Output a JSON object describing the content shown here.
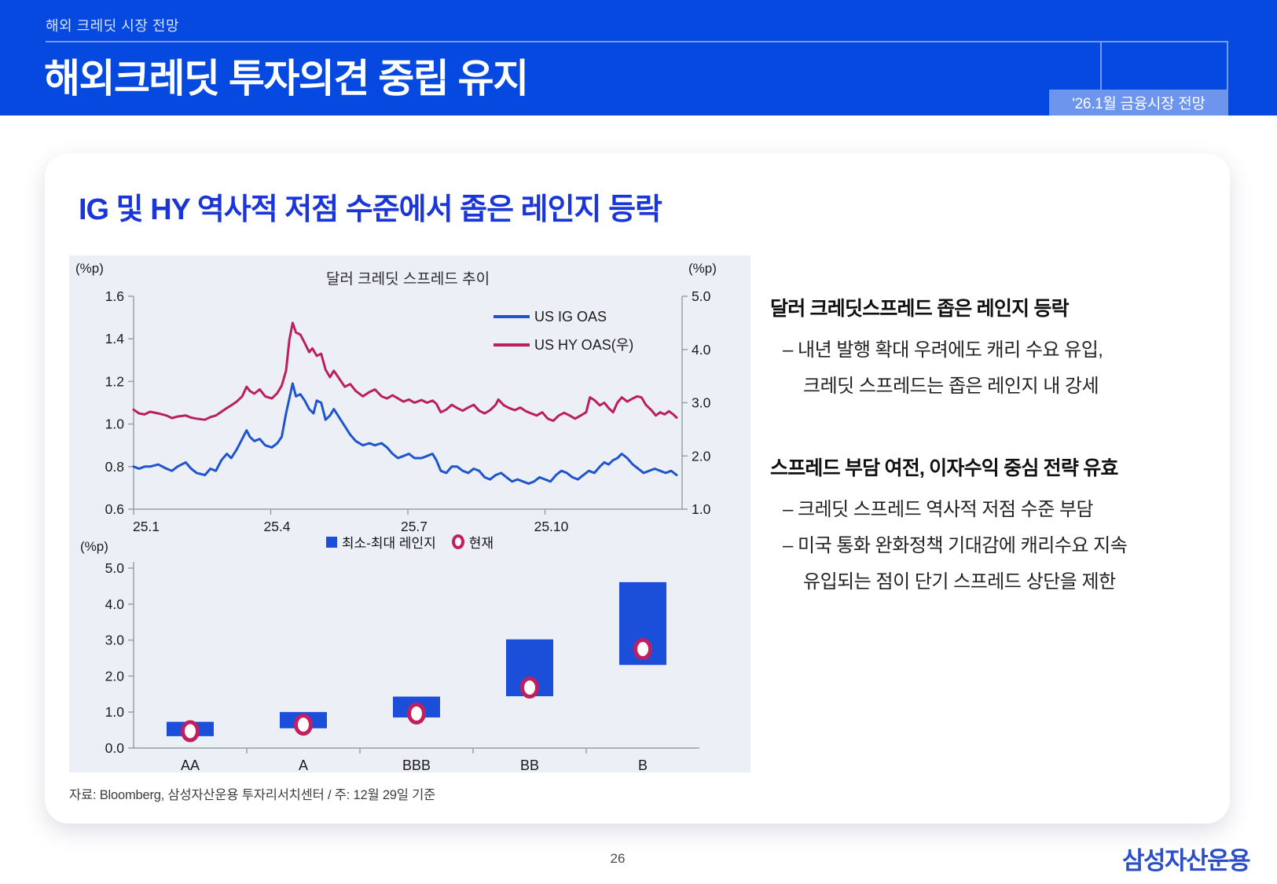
{
  "header": {
    "eyebrow": "해외 크레딧 시장 전망",
    "title": "해외크레딧 투자의견 중립 유지",
    "badge": "'26.1월 금융시장 전망",
    "background_color": "#0549e0"
  },
  "card": {
    "section_title": "IG 및 HY 역사적 저점 수준에서 좁은 레인지 등락",
    "source": "자료: Bloomberg, 삼성자산운용 투자리서치센터 / 주: 12월 29일 기준"
  },
  "commentary": {
    "block1": {
      "heading": "달러 크레딧스프레드 좁은 레인지 등락",
      "line1": "– 내년 발행 확대 우려에도 캐리 수요 유입,",
      "line2": "크레딧 스프레드는 좁은 레인지 내 강세"
    },
    "block2": {
      "heading": "스프레드 부담 여전, 이자수익 중심 전략 유효",
      "line1": "– 크레딧 스프레드 역사적 저점 수준 부담",
      "line2": "– 미국 통화 완화정책 기대감에 캐리수요 지속",
      "line3": "유입되는 점이 단기 스프레드 상단을 제한"
    }
  },
  "footer": {
    "page_number": "26",
    "logo": "삼성자산운용"
  },
  "chart_data": [
    {
      "type": "line",
      "title": "달러 크레딧 스프레드 추이",
      "left_axis": {
        "label": "(%p)",
        "range": [
          0.6,
          1.6
        ],
        "ticks": [
          1.6,
          1.4,
          1.2,
          1.0,
          0.8,
          0.6
        ]
      },
      "right_axis": {
        "label": "(%p)",
        "range": [
          1.0,
          5.0
        ],
        "ticks": [
          5.0,
          4.0,
          3.0,
          2.0,
          1.0
        ]
      },
      "x_ticks": [
        {
          "label": "25.1",
          "month": 0
        },
        {
          "label": "25.4",
          "month": 3
        },
        {
          "label": "25.7",
          "month": 6
        },
        {
          "label": "25.10",
          "month": 9
        }
      ],
      "x_span_months": 12,
      "legend_position": "inside-right",
      "series": [
        {
          "name": "US IG OAS",
          "axis": "left",
          "color": "#1f55cc",
          "points": [
            [
              0,
              0.8
            ],
            [
              0.01,
              0.79
            ],
            [
              0.02,
              0.8
            ],
            [
              0.03,
              0.8
            ],
            [
              0.045,
              0.81
            ],
            [
              0.06,
              0.79
            ],
            [
              0.07,
              0.78
            ],
            [
              0.08,
              0.8
            ],
            [
              0.095,
              0.82
            ],
            [
              0.105,
              0.79
            ],
            [
              0.115,
              0.77
            ],
            [
              0.13,
              0.76
            ],
            [
              0.14,
              0.79
            ],
            [
              0.15,
              0.78
            ],
            [
              0.16,
              0.83
            ],
            [
              0.17,
              0.86
            ],
            [
              0.178,
              0.84
            ],
            [
              0.188,
              0.88
            ],
            [
              0.198,
              0.93
            ],
            [
              0.206,
              0.97
            ],
            [
              0.212,
              0.94
            ],
            [
              0.22,
              0.92
            ],
            [
              0.23,
              0.93
            ],
            [
              0.24,
              0.9
            ],
            [
              0.252,
              0.89
            ],
            [
              0.262,
              0.91
            ],
            [
              0.27,
              0.94
            ],
            [
              0.278,
              1.05
            ],
            [
              0.284,
              1.12
            ],
            [
              0.29,
              1.19
            ],
            [
              0.296,
              1.13
            ],
            [
              0.304,
              1.14
            ],
            [
              0.312,
              1.11
            ],
            [
              0.32,
              1.07
            ],
            [
              0.328,
              1.05
            ],
            [
              0.334,
              1.11
            ],
            [
              0.342,
              1.1
            ],
            [
              0.35,
              1.02
            ],
            [
              0.358,
              1.04
            ],
            [
              0.365,
              1.07
            ],
            [
              0.375,
              1.03
            ],
            [
              0.385,
              0.99
            ],
            [
              0.395,
              0.95
            ],
            [
              0.405,
              0.92
            ],
            [
              0.418,
              0.9
            ],
            [
              0.43,
              0.91
            ],
            [
              0.44,
              0.9
            ],
            [
              0.452,
              0.91
            ],
            [
              0.462,
              0.89
            ],
            [
              0.472,
              0.86
            ],
            [
              0.482,
              0.84
            ],
            [
              0.492,
              0.85
            ],
            [
              0.502,
              0.86
            ],
            [
              0.512,
              0.84
            ],
            [
              0.525,
              0.84
            ],
            [
              0.535,
              0.85
            ],
            [
              0.545,
              0.86
            ],
            [
              0.552,
              0.83
            ],
            [
              0.56,
              0.78
            ],
            [
              0.57,
              0.77
            ],
            [
              0.58,
              0.8
            ],
            [
              0.59,
              0.8
            ],
            [
              0.6,
              0.78
            ],
            [
              0.61,
              0.77
            ],
            [
              0.62,
              0.79
            ],
            [
              0.63,
              0.78
            ],
            [
              0.64,
              0.75
            ],
            [
              0.65,
              0.74
            ],
            [
              0.66,
              0.76
            ],
            [
              0.67,
              0.77
            ],
            [
              0.68,
              0.75
            ],
            [
              0.69,
              0.73
            ],
            [
              0.7,
              0.74
            ],
            [
              0.71,
              0.73
            ],
            [
              0.72,
              0.72
            ],
            [
              0.73,
              0.73
            ],
            [
              0.74,
              0.75
            ],
            [
              0.75,
              0.74
            ],
            [
              0.76,
              0.73
            ],
            [
              0.77,
              0.76
            ],
            [
              0.78,
              0.78
            ],
            [
              0.79,
              0.77
            ],
            [
              0.8,
              0.75
            ],
            [
              0.81,
              0.74
            ],
            [
              0.82,
              0.76
            ],
            [
              0.83,
              0.78
            ],
            [
              0.84,
              0.77
            ],
            [
              0.85,
              0.8
            ],
            [
              0.858,
              0.82
            ],
            [
              0.866,
              0.81
            ],
            [
              0.874,
              0.83
            ],
            [
              0.882,
              0.84
            ],
            [
              0.89,
              0.86
            ],
            [
              0.9,
              0.84
            ],
            [
              0.91,
              0.81
            ],
            [
              0.92,
              0.79
            ],
            [
              0.93,
              0.77
            ],
            [
              0.94,
              0.78
            ],
            [
              0.95,
              0.79
            ],
            [
              0.96,
              0.78
            ],
            [
              0.97,
              0.77
            ],
            [
              0.98,
              0.78
            ],
            [
              0.99,
              0.76
            ]
          ]
        },
        {
          "name": "US HY OAS(우)",
          "axis": "right",
          "color": "#ba1f5f",
          "points": [
            [
              0,
              2.87
            ],
            [
              0.01,
              2.8
            ],
            [
              0.02,
              2.78
            ],
            [
              0.03,
              2.83
            ],
            [
              0.045,
              2.8
            ],
            [
              0.06,
              2.76
            ],
            [
              0.07,
              2.71
            ],
            [
              0.08,
              2.74
            ],
            [
              0.095,
              2.76
            ],
            [
              0.105,
              2.72
            ],
            [
              0.115,
              2.7
            ],
            [
              0.13,
              2.68
            ],
            [
              0.14,
              2.73
            ],
            [
              0.15,
              2.76
            ],
            [
              0.16,
              2.83
            ],
            [
              0.17,
              2.9
            ],
            [
              0.178,
              2.95
            ],
            [
              0.188,
              3.02
            ],
            [
              0.198,
              3.12
            ],
            [
              0.206,
              3.3
            ],
            [
              0.212,
              3.22
            ],
            [
              0.22,
              3.17
            ],
            [
              0.23,
              3.25
            ],
            [
              0.24,
              3.12
            ],
            [
              0.252,
              3.08
            ],
            [
              0.262,
              3.18
            ],
            [
              0.27,
              3.32
            ],
            [
              0.278,
              3.6
            ],
            [
              0.284,
              4.18
            ],
            [
              0.29,
              4.5
            ],
            [
              0.296,
              4.32
            ],
            [
              0.304,
              4.28
            ],
            [
              0.312,
              4.12
            ],
            [
              0.32,
              3.95
            ],
            [
              0.326,
              4.02
            ],
            [
              0.334,
              3.88
            ],
            [
              0.342,
              3.92
            ],
            [
              0.35,
              3.62
            ],
            [
              0.358,
              3.48
            ],
            [
              0.365,
              3.6
            ],
            [
              0.375,
              3.45
            ],
            [
              0.385,
              3.3
            ],
            [
              0.395,
              3.35
            ],
            [
              0.405,
              3.22
            ],
            [
              0.418,
              3.12
            ],
            [
              0.43,
              3.2
            ],
            [
              0.44,
              3.25
            ],
            [
              0.452,
              3.12
            ],
            [
              0.462,
              3.08
            ],
            [
              0.472,
              3.14
            ],
            [
              0.482,
              3.08
            ],
            [
              0.492,
              3.02
            ],
            [
              0.502,
              3.06
            ],
            [
              0.512,
              3.0
            ],
            [
              0.525,
              3.05
            ],
            [
              0.535,
              3.0
            ],
            [
              0.545,
              3.04
            ],
            [
              0.552,
              2.98
            ],
            [
              0.56,
              2.82
            ],
            [
              0.57,
              2.87
            ],
            [
              0.58,
              2.96
            ],
            [
              0.59,
              2.9
            ],
            [
              0.6,
              2.85
            ],
            [
              0.61,
              2.91
            ],
            [
              0.62,
              2.96
            ],
            [
              0.63,
              2.85
            ],
            [
              0.64,
              2.8
            ],
            [
              0.65,
              2.86
            ],
            [
              0.66,
              2.96
            ],
            [
              0.665,
              3.06
            ],
            [
              0.675,
              2.95
            ],
            [
              0.685,
              2.9
            ],
            [
              0.695,
              2.86
            ],
            [
              0.705,
              2.91
            ],
            [
              0.715,
              2.84
            ],
            [
              0.725,
              2.8
            ],
            [
              0.735,
              2.76
            ],
            [
              0.745,
              2.82
            ],
            [
              0.755,
              2.7
            ],
            [
              0.765,
              2.66
            ],
            [
              0.775,
              2.76
            ],
            [
              0.785,
              2.81
            ],
            [
              0.795,
              2.76
            ],
            [
              0.805,
              2.7
            ],
            [
              0.815,
              2.76
            ],
            [
              0.825,
              2.82
            ],
            [
              0.832,
              3.1
            ],
            [
              0.84,
              3.05
            ],
            [
              0.85,
              2.95
            ],
            [
              0.858,
              3.0
            ],
            [
              0.866,
              2.9
            ],
            [
              0.874,
              2.82
            ],
            [
              0.882,
              3.0
            ],
            [
              0.89,
              3.1
            ],
            [
              0.9,
              3.02
            ],
            [
              0.91,
              3.08
            ],
            [
              0.918,
              3.12
            ],
            [
              0.926,
              3.1
            ],
            [
              0.934,
              2.96
            ],
            [
              0.944,
              2.86
            ],
            [
              0.952,
              2.76
            ],
            [
              0.96,
              2.82
            ],
            [
              0.968,
              2.78
            ],
            [
              0.976,
              2.84
            ],
            [
              0.984,
              2.78
            ],
            [
              0.99,
              2.72
            ]
          ]
        }
      ]
    },
    {
      "type": "range-bar",
      "ylabel": "(%p)",
      "ylim": [
        0.0,
        5.0
      ],
      "y_ticks": [
        5.0,
        4.0,
        3.0,
        2.0,
        1.0,
        0.0
      ],
      "categories": [
        "AA",
        "A",
        "BBB",
        "BB",
        "B"
      ],
      "legend": [
        {
          "label": "최소-최대 레인지",
          "marker": "square",
          "color": "#1c4fd9"
        },
        {
          "label": "현재",
          "marker": "ring",
          "color": "#c01f60"
        }
      ],
      "series": [
        {
          "name": "최소-최대 레인지",
          "color": "#1c4fd9",
          "mins": [
            0.33,
            0.55,
            0.85,
            1.44,
            2.31
          ],
          "maxs": [
            0.73,
            1.0,
            1.43,
            3.02,
            4.61
          ]
        },
        {
          "name": "현재",
          "color": "#c01f60",
          "values": [
            0.47,
            0.65,
            0.96,
            1.68,
            2.75
          ]
        }
      ]
    }
  ]
}
